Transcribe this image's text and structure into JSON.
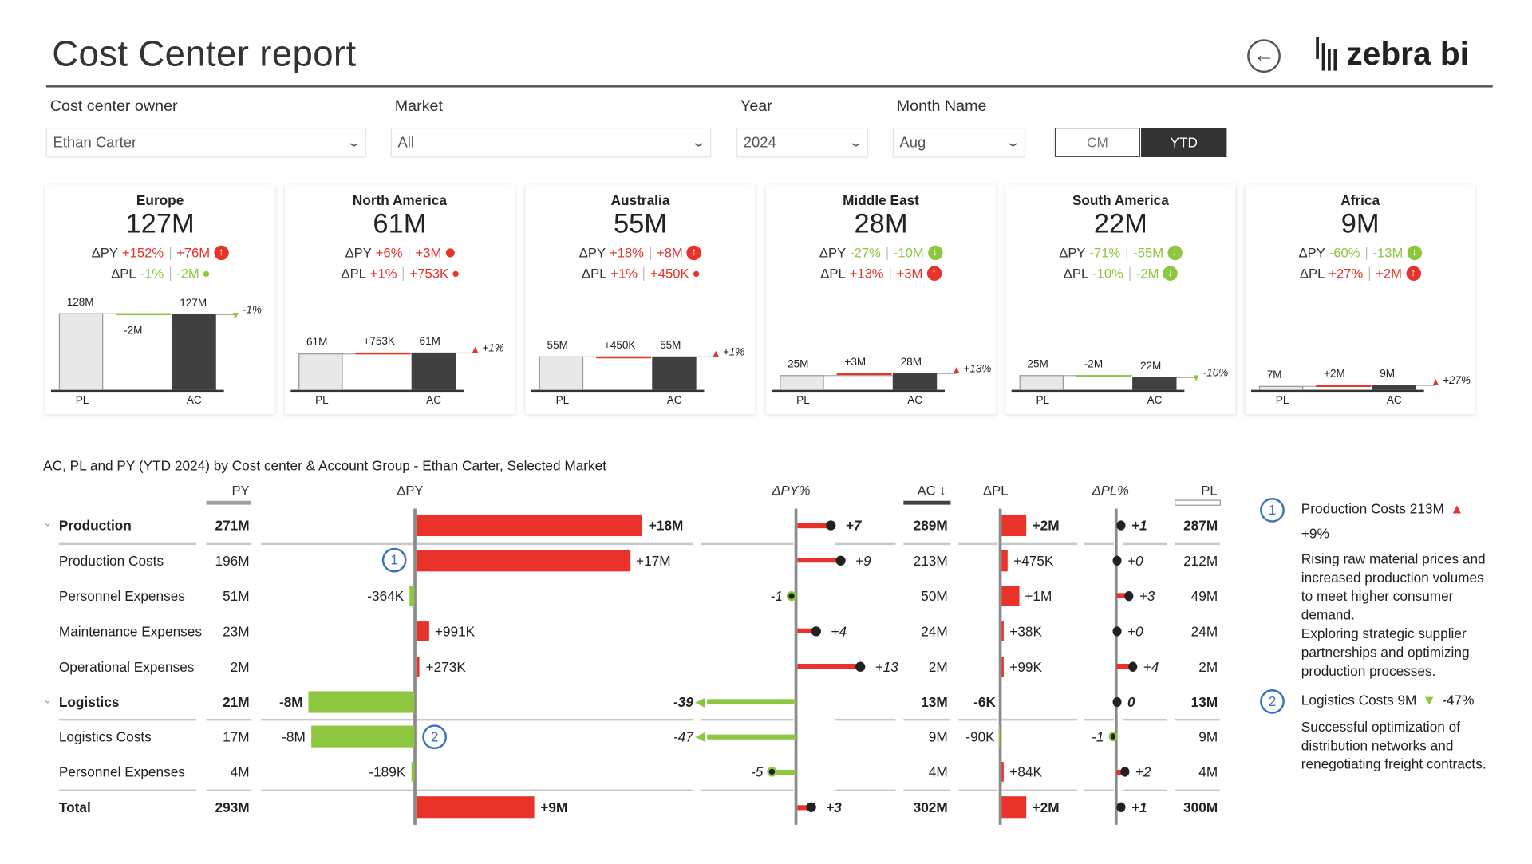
{
  "header": {
    "title": "Cost Center report",
    "back_icon": "arrow-left-circle-icon",
    "logo_text": "zebra bi"
  },
  "filters": [
    {
      "label": "Cost center owner",
      "value": "Ethan Carter"
    },
    {
      "label": "Market",
      "value": "All"
    },
    {
      "label": "Year",
      "value": "2024"
    },
    {
      "label": "Month Name",
      "value": "Aug"
    }
  ],
  "toggle": {
    "options": [
      "CM",
      "YTD"
    ],
    "selected": "YTD"
  },
  "colors": {
    "negative_good": "#8dc63f",
    "positive_bad": "#e8322a",
    "actual": "#404040",
    "plan": "#e8e8e8",
    "marker": "#3a73bd"
  },
  "cards": [
    {
      "region": "Europe",
      "value": "127M",
      "dpy_pct": "+152%",
      "dpy_abs": "+76M",
      "dpy_good": false,
      "dpy_icon": "arrow-up",
      "dpl_pct": "-1%",
      "dpl_abs": "-2M",
      "dpl_good": true,
      "dpl_icon": "dot",
      "pl": 128,
      "ac": 127,
      "pl_label": "128M",
      "ac_label": "127M",
      "delta_label": "-2M",
      "pct_label": "-1%",
      "x_labels": [
        "PL",
        "AC"
      ]
    },
    {
      "region": "North America",
      "value": "61M",
      "dpy_pct": "+6%",
      "dpy_abs": "+3M",
      "dpy_good": false,
      "dpy_icon": "dot-large",
      "dpl_pct": "+1%",
      "dpl_abs": "+753K",
      "dpl_good": false,
      "dpl_icon": "dot",
      "pl": 61,
      "ac": 61.75,
      "pl_label": "61M",
      "ac_label": "61M",
      "delta_label": "+753K",
      "pct_label": "+1%",
      "x_labels": [
        "PL",
        "AC"
      ]
    },
    {
      "region": "Australia",
      "value": "55M",
      "dpy_pct": "+18%",
      "dpy_abs": "+8M",
      "dpy_good": false,
      "dpy_icon": "arrow-up",
      "dpl_pct": "+1%",
      "dpl_abs": "+450K",
      "dpl_good": false,
      "dpl_icon": "dot",
      "pl": 55,
      "ac": 55.45,
      "pl_label": "55M",
      "ac_label": "55M",
      "delta_label": "+450K",
      "pct_label": "+1%",
      "x_labels": [
        "PL",
        "AC"
      ]
    },
    {
      "region": "Middle East",
      "value": "28M",
      "dpy_pct": "-27%",
      "dpy_abs": "-10M",
      "dpy_good": true,
      "dpy_icon": "arrow-down",
      "dpl_pct": "+13%",
      "dpl_abs": "+3M",
      "dpl_good": false,
      "dpl_icon": "arrow-up",
      "pl": 25,
      "ac": 28,
      "pl_label": "25M",
      "ac_label": "28M",
      "delta_label": "+3M",
      "pct_label": "+13%",
      "x_labels": [
        "PL",
        "AC"
      ]
    },
    {
      "region": "South America",
      "value": "22M",
      "dpy_pct": "-71%",
      "dpy_abs": "-55M",
      "dpy_good": true,
      "dpy_icon": "arrow-down",
      "dpl_pct": "-10%",
      "dpl_abs": "-2M",
      "dpl_good": true,
      "dpl_icon": "arrow-down",
      "pl": 25,
      "ac": 22,
      "pl_label": "25M",
      "ac_label": "22M",
      "delta_label": "-2M",
      "pct_label": "-10%",
      "x_labels": [
        "PL",
        "AC"
      ]
    },
    {
      "region": "Africa",
      "value": "9M",
      "dpy_pct": "-60%",
      "dpy_abs": "-13M",
      "dpy_good": true,
      "dpy_icon": "arrow-down",
      "dpl_pct": "+27%",
      "dpl_abs": "+2M",
      "dpl_good": false,
      "dpl_icon": "arrow-up",
      "pl": 7,
      "ac": 9,
      "pl_label": "7M",
      "ac_label": "9M",
      "delta_label": "+2M",
      "pct_label": "+27%",
      "x_labels": [
        "PL",
        "AC"
      ]
    }
  ],
  "table": {
    "title": "AC, PL and PY (YTD 2024) by Cost center & Account Group - Ethan Carter, Selected Market",
    "columns": {
      "py": "PY",
      "dpy": "ΔPY",
      "dpy_pct": "ΔPY%",
      "ac": "AC ↓",
      "dpl": "ΔPL",
      "dpl_pct": "ΔPL%",
      "pl": "PL"
    },
    "rows": [
      {
        "name": "Production",
        "group": true,
        "py": "271M",
        "dpy": "+18M",
        "dpy_v": 18,
        "dpy_pct": "+7",
        "dpy_pct_v": 7,
        "ac": "289M",
        "dpl": "+2M",
        "dpl_v": 2,
        "dpl_pct": "+1",
        "dpl_pct_v": 1,
        "pl": "287M"
      },
      {
        "name": "Production Costs",
        "py": "196M",
        "dpy": "+17M",
        "dpy_v": 17,
        "dpy_pct": "+9",
        "dpy_pct_v": 9,
        "ac": "213M",
        "dpl": "+475K",
        "dpl_v": 0.475,
        "dpl_pct": "+0",
        "dpl_pct_v": 0,
        "pl": "212M",
        "marker": "1"
      },
      {
        "name": "Personnel Expenses",
        "py": "51M",
        "dpy": "-364K",
        "dpy_v": -0.364,
        "dpy_pct": "-1",
        "dpy_pct_v": -1,
        "ac": "50M",
        "dpl": "+1M",
        "dpl_v": 1.4,
        "dpl_pct": "+3",
        "dpl_pct_v": 3,
        "pl": "49M"
      },
      {
        "name": "Maintenance Expenses",
        "py": "23M",
        "dpy": "+991K",
        "dpy_v": 0.991,
        "dpy_pct": "+4",
        "dpy_pct_v": 4,
        "ac": "24M",
        "dpl": "+38K",
        "dpl_v": 0.038,
        "dpl_pct": "+0",
        "dpl_pct_v": 0,
        "pl": "24M"
      },
      {
        "name": "Operational Expenses",
        "py": "2M",
        "dpy": "+273K",
        "dpy_v": 0.273,
        "dpy_pct": "+13",
        "dpy_pct_v": 13,
        "ac": "2M",
        "dpl": "+99K",
        "dpl_v": 0.099,
        "dpl_pct": "+4",
        "dpl_pct_v": 4,
        "pl": "2M"
      },
      {
        "name": "Logistics",
        "group": true,
        "py": "21M",
        "dpy": "-8M",
        "dpy_v": -8.4,
        "dpy_pct": "-39",
        "dpy_pct_v": -39,
        "ac": "13M",
        "dpl": "-6K",
        "dpl_v": -0.006,
        "dpl_pct": "0",
        "dpl_pct_v": 0,
        "pl": "13M"
      },
      {
        "name": "Logistics Costs",
        "py": "17M",
        "dpy": "-8M",
        "dpy_v": -8.2,
        "dpy_pct": "-47",
        "dpy_pct_v": -47,
        "ac": "9M",
        "dpl": "-90K",
        "dpl_v": -0.09,
        "dpl_pct": "-1",
        "dpl_pct_v": -1,
        "pl": "9M",
        "marker": "2"
      },
      {
        "name": "Personnel Expenses",
        "py": "4M",
        "dpy": "-189K",
        "dpy_v": -0.189,
        "dpy_pct": "-5",
        "dpy_pct_v": -5,
        "ac": "4M",
        "dpl": "+84K",
        "dpl_v": 0.084,
        "dpl_pct": "+2",
        "dpl_pct_v": 2,
        "pl": "4M"
      },
      {
        "name": "Total",
        "total": true,
        "py": "293M",
        "dpy": "+9M",
        "dpy_v": 9.4,
        "dpy_pct": "+3",
        "dpy_pct_v": 3,
        "ac": "302M",
        "dpl": "+2M",
        "dpl_v": 2,
        "dpl_pct": "+1",
        "dpl_pct_v": 1,
        "pl": "300M"
      }
    ]
  },
  "comments": [
    {
      "number": "1",
      "heading": "Production Costs 213M",
      "direction": "up",
      "change": "+9%",
      "body": "Rising raw material prices and increased production volumes to meet higher consumer demand.",
      "body2": "Exploring strategic supplier partnerships and optimizing production processes."
    },
    {
      "number": "2",
      "heading": "Logistics Costs 9M",
      "direction": "down",
      "change": "-47%",
      "body": "Successful optimization of distribution networks and renegotiating freight contracts."
    }
  ]
}
